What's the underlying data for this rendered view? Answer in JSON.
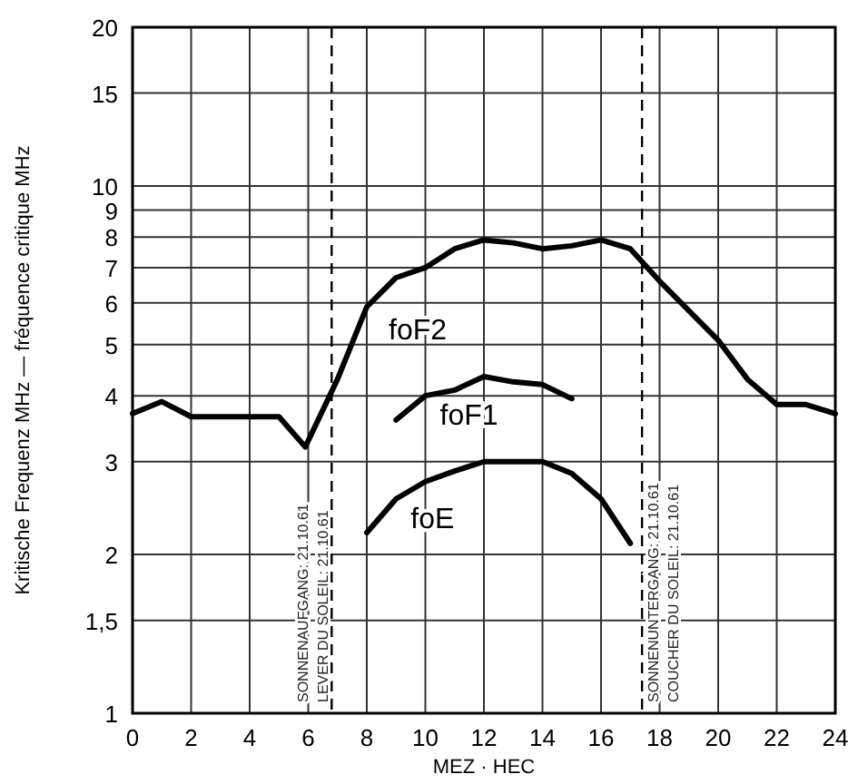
{
  "chart_data": {
    "type": "line",
    "xlabel": "MEZ · HEC",
    "ylabel": "Kritische Frequenz MHz — fréquence critique MHz",
    "log": "y",
    "grid": true,
    "marker": "none",
    "line_style": "solid",
    "xlim": [
      0,
      24
    ],
    "xticks": [
      0,
      2,
      4,
      6,
      8,
      10,
      12,
      14,
      16,
      18,
      20,
      22,
      24
    ],
    "ylim": [
      1,
      20
    ],
    "yticks": [
      1,
      {
        "value": 1.5,
        "label": "1,5"
      },
      2,
      3,
      4,
      5,
      6,
      7,
      8,
      9,
      10,
      15,
      20
    ],
    "series": [
      {
        "name": "foF2",
        "color": "#000000",
        "x": [
          0,
          1,
          2,
          3,
          4,
          5,
          5.9,
          7,
          8,
          9,
          10,
          11,
          12,
          13,
          14,
          15,
          16,
          17,
          18,
          19,
          20,
          21,
          22,
          23,
          24
        ],
        "values": [
          3.7,
          3.9,
          3.65,
          3.65,
          3.65,
          3.65,
          3.2,
          4.3,
          5.9,
          6.7,
          7.0,
          7.6,
          7.9,
          7.8,
          7.6,
          7.7,
          7.9,
          7.6,
          6.6,
          5.8,
          5.1,
          4.3,
          3.85,
          3.85,
          3.7
        ]
      },
      {
        "name": "foF1",
        "color": "#000000",
        "x": [
          9,
          10,
          11,
          12,
          13,
          14,
          15
        ],
        "values": [
          3.6,
          4.0,
          4.1,
          4.35,
          4.25,
          4.2,
          3.95
        ]
      },
      {
        "name": "foE",
        "color": "#000000",
        "x": [
          8,
          9,
          10,
          11,
          12,
          13,
          14,
          15,
          16,
          17
        ],
        "values": [
          2.2,
          2.55,
          2.75,
          2.88,
          3.0,
          3.0,
          3.0,
          2.85,
          2.55,
          2.1
        ]
      }
    ],
    "ref_lines": [
      {
        "axis": "x",
        "value": 6.8,
        "label": "SONNENAUFGANG: 21.10.61\nLEVER DU SOLEIL: 21.10.61",
        "line_style": "dashed"
      },
      {
        "axis": "x",
        "value": 17.4,
        "label": "SONNENUNTERGANG: 21.10.61\nCOUCHER DU SOLEIL: 21.10.61",
        "line_style": "dashed"
      }
    ]
  }
}
